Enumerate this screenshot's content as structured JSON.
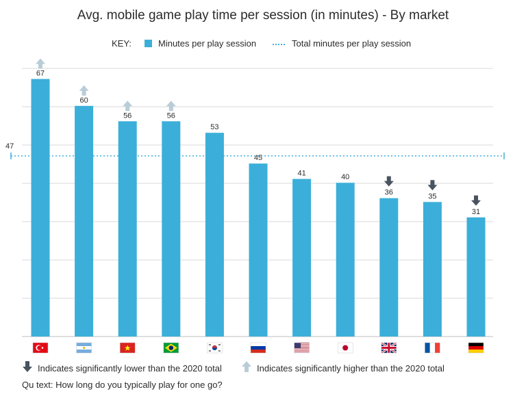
{
  "title": "Avg. mobile game play time per session (in minutes) - By market",
  "key": {
    "prefix": "KEY:",
    "series_label": "Minutes per play session",
    "total_label": "Total minutes per play session"
  },
  "colors": {
    "bar": "#3bafd9",
    "grid": "#d9d9d9",
    "arrow_up": "#b9ccd8",
    "arrow_down": "#4a5460",
    "text": "#2b2b2b"
  },
  "chart_data": {
    "type": "bar",
    "categories": [
      "Turkey",
      "Argentina",
      "Vietnam",
      "Brazil",
      "South Korea",
      "Russia",
      "United States",
      "Japan",
      "United Kingdom",
      "France",
      "Germany"
    ],
    "series": [
      {
        "name": "Minutes per play session",
        "values": [
          67,
          60,
          56,
          56,
          53,
          45,
          41,
          40,
          36,
          35,
          31
        ]
      }
    ],
    "reference_line": {
      "name": "Total minutes per play session",
      "value": 47,
      "label": "47",
      "style": "dotted"
    },
    "significance": [
      "higher",
      "higher",
      "higher",
      "higher",
      "none",
      "none",
      "none",
      "none",
      "lower",
      "lower",
      "lower"
    ],
    "ylim": [
      0,
      70
    ],
    "grid": true,
    "legend": "top-center",
    "xlabel": "",
    "ylabel": "",
    "x_tick_style": "country flags"
  },
  "footer": {
    "lower_note": "Indicates significantly lower than the 2020 total",
    "higher_note": "Indicates significantly higher than the 2020 total",
    "question": "Qu text: How long do you typically play for one go?"
  }
}
